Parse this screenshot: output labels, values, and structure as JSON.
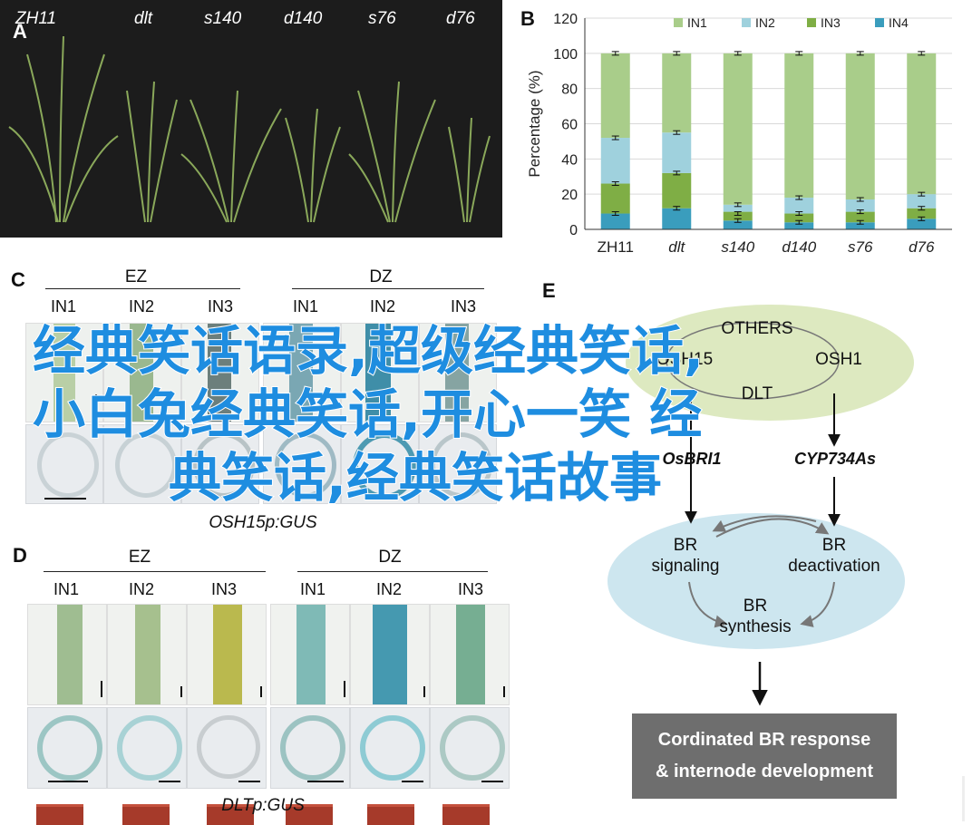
{
  "panels": {
    "a": {
      "letter": "A",
      "genotypes": [
        "ZH11",
        "dlt",
        "s140",
        "d140",
        "s76",
        "d76"
      ]
    },
    "b": {
      "letter": "B"
    },
    "c": {
      "letter": "C",
      "caption": "OSH15p:GUS"
    },
    "d": {
      "letter": "D",
      "caption": "DLTp:GUS"
    },
    "e": {
      "letter": "E"
    }
  },
  "groups": {
    "ez": "EZ",
    "dz": "DZ",
    "in_labels": [
      "IN1",
      "IN2",
      "IN3"
    ]
  },
  "chart_data": {
    "type": "bar",
    "stacked": true,
    "categories": [
      "ZH11",
      "dlt",
      "s140",
      "d140",
      "s76",
      "d76"
    ],
    "series": [
      {
        "name": "IN1",
        "values": [
          48,
          45,
          86,
          82,
          83,
          80
        ]
      },
      {
        "name": "IN2",
        "values": [
          26,
          23,
          4,
          9,
          7,
          8
        ]
      },
      {
        "name": "IN3",
        "values": [
          17,
          20,
          5,
          5,
          6,
          6
        ]
      },
      {
        "name": "IN4",
        "values": [
          9,
          12,
          5,
          4,
          4,
          6
        ]
      }
    ],
    "error_tops": [
      [
        100,
        52,
        26,
        9
      ],
      [
        100,
        55,
        32,
        12
      ],
      [
        100,
        14,
        9,
        5
      ],
      [
        100,
        18,
        9,
        4
      ],
      [
        100,
        17,
        10,
        4
      ],
      [
        100,
        20,
        12,
        6
      ]
    ],
    "ylabel": "Percentage (%)",
    "ylim": [
      0,
      120
    ],
    "yticks": [
      0,
      20,
      40,
      60,
      80,
      100,
      120
    ],
    "legend": "top",
    "colors": {
      "IN1": "#a9cd8a",
      "IN2": "#9fd1dd",
      "IN3": "#7fae45",
      "IN4": "#3a9dbd"
    }
  },
  "diagram": {
    "others": "OTHERS",
    "osh15": "OSH15",
    "osh1": "OSH1",
    "dlt": "DLT",
    "osbri1": "OsBRI1",
    "cyp": "CYP734As",
    "br_signaling": [
      "BR",
      "signaling"
    ],
    "br_deactivation": [
      "BR",
      "deactivation"
    ],
    "br_synthesis": [
      "BR",
      "synthesis"
    ],
    "response": [
      "Cordinated BR response",
      "& internode development"
    ],
    "colors": {
      "top_ellipse": "#dde9c0",
      "bottom_ellipse": "#cde6ef",
      "box": "#6e6e6e"
    }
  },
  "overlay": {
    "lines": [
      "经典笑话语录,超级经典笑话,",
      "小白兔经典笑话,开心一笑 经",
      "典笑话,经典笑话故事"
    ],
    "color": "#1e8de0"
  }
}
